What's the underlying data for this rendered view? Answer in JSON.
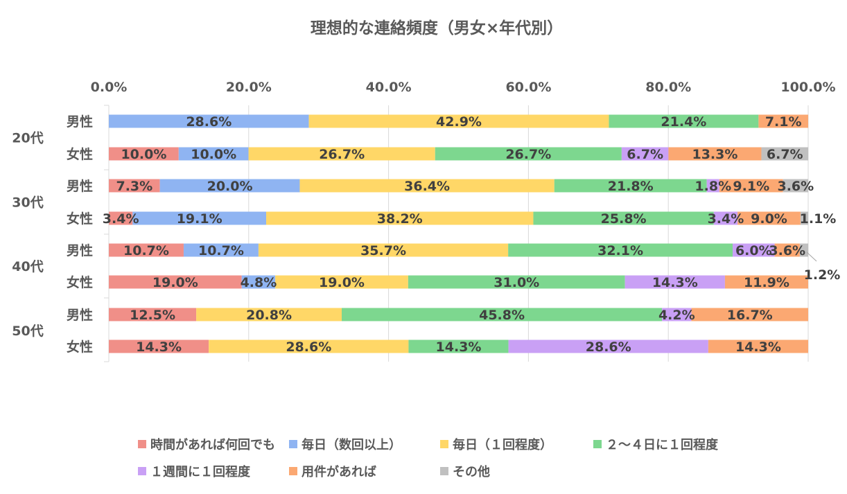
{
  "chart_data": {
    "type": "bar",
    "orientation": "horizontal",
    "stacked": "percent",
    "title": "理想的な連絡頻度（男女×年代別）",
    "xlabel": "",
    "ylabel": "",
    "xlim": [
      0,
      100
    ],
    "x_ticks": [
      "0.0%",
      "20.0%",
      "40.0%",
      "60.0%",
      "80.0%",
      "100.0%"
    ],
    "grid": true,
    "legend_position": "bottom",
    "groups": [
      {
        "label": "20代",
        "rows": [
          "男性",
          "女性"
        ]
      },
      {
        "label": "30代",
        "rows": [
          "男性",
          "女性"
        ]
      },
      {
        "label": "40代",
        "rows": [
          "男性",
          "女性"
        ]
      },
      {
        "label": "50代",
        "rows": [
          "男性",
          "女性"
        ]
      }
    ],
    "categories": [
      "20代 男性",
      "20代 女性",
      "30代 男性",
      "30代 女性",
      "40代 男性",
      "40代 女性",
      "50代 男性",
      "50代 女性"
    ],
    "series": [
      {
        "name": "時間があれば何回でも",
        "color": "#F08F88",
        "values": [
          0,
          10.0,
          7.3,
          3.4,
          10.7,
          19.0,
          12.5,
          14.3
        ],
        "labels": [
          "",
          "10.0%",
          "7.3%",
          "3.4%",
          "10.7%",
          "19.0%",
          "12.5%",
          "14.3%"
        ]
      },
      {
        "name": "毎日（数回以上）",
        "color": "#8FB4F2",
        "values": [
          28.6,
          10.0,
          20.0,
          19.1,
          10.7,
          4.8,
          0,
          0
        ],
        "labels": [
          "28.6%",
          "10.0%",
          "20.0%",
          "19.1%",
          "10.7%",
          "4.8%",
          "",
          ""
        ]
      },
      {
        "name": "毎日（１回程度）",
        "color": "#FFD767",
        "values": [
          42.9,
          26.7,
          36.4,
          38.2,
          35.7,
          19.0,
          20.8,
          28.6
        ],
        "labels": [
          "42.9%",
          "26.7%",
          "36.4%",
          "38.2%",
          "35.7%",
          "19.0%",
          "20.8%",
          "28.6%"
        ]
      },
      {
        "name": "２～４日に１回程度",
        "color": "#7DD78F",
        "values": [
          21.4,
          26.7,
          21.8,
          25.8,
          32.1,
          31.0,
          45.8,
          14.3
        ],
        "labels": [
          "21.4%",
          "26.7%",
          "21.8%",
          "25.8%",
          "32.1%",
          "31.0%",
          "45.8%",
          "14.3%"
        ]
      },
      {
        "name": "１週間に１回程度",
        "color": "#C9A0F5",
        "values": [
          0,
          6.7,
          1.8,
          3.4,
          6.0,
          14.3,
          4.2,
          28.6
        ],
        "labels": [
          "",
          "6.7%",
          "1.8%",
          "3.4%",
          "6.0%",
          "14.3%",
          "4.2%",
          "28.6%"
        ]
      },
      {
        "name": "用件があれば",
        "color": "#FBA872",
        "values": [
          7.1,
          13.3,
          9.1,
          9.0,
          3.6,
          11.9,
          16.7,
          14.3
        ],
        "labels": [
          "7.1%",
          "13.3%",
          "9.1%",
          "9.0%",
          "3.6%",
          "11.9%",
          "16.7%",
          "14.3%"
        ]
      },
      {
        "name": "その他",
        "color": "#C0C0C0",
        "values": [
          0,
          6.7,
          3.6,
          1.1,
          1.2,
          0,
          0,
          0
        ],
        "labels": [
          "",
          "6.7%",
          "3.6%",
          "1.1%",
          "1.2%",
          "",
          "",
          ""
        ]
      }
    ]
  }
}
